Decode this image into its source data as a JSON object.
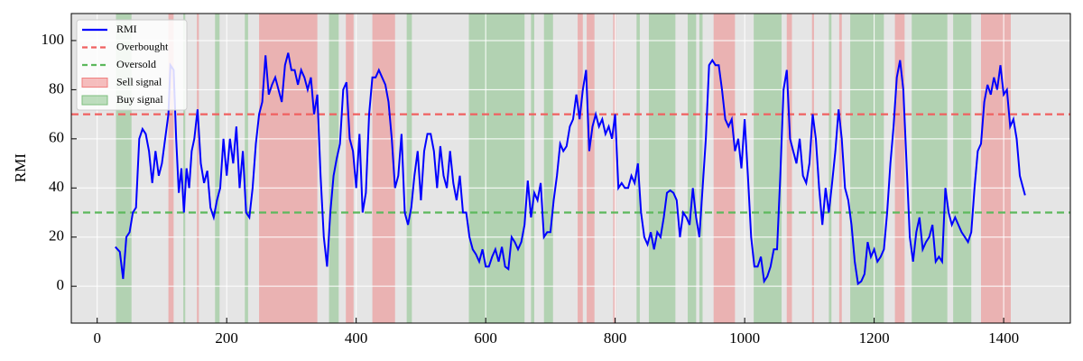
{
  "chart_data": {
    "type": "line",
    "y_label": "RMI",
    "xlim": [
      -40,
      1503
    ],
    "ylim": [
      -15,
      111
    ],
    "xticks": [
      0,
      200,
      400,
      600,
      800,
      1000,
      1200,
      1400
    ],
    "yticks": [
      0,
      20,
      40,
      60,
      80,
      100
    ],
    "grid": true,
    "legend": "upper left",
    "series": [
      {
        "name": "RMI",
        "color": "#0000ff",
        "x": [
          28,
          35,
          40,
          45,
          50,
          55,
          60,
          65,
          70,
          75,
          80,
          85,
          90,
          95,
          100,
          105,
          110,
          113,
          118,
          122,
          126,
          130,
          134,
          138,
          142,
          146,
          150,
          155,
          160,
          165,
          170,
          175,
          180,
          185,
          190,
          195,
          200,
          205,
          210,
          215,
          220,
          225,
          230,
          235,
          240,
          245,
          250,
          255,
          260,
          265,
          270,
          275,
          280,
          285,
          290,
          295,
          300,
          305,
          310,
          315,
          320,
          325,
          330,
          335,
          340,
          345,
          350,
          355,
          360,
          365,
          370,
          375,
          380,
          385,
          390,
          395,
          400,
          405,
          410,
          415,
          420,
          425,
          430,
          435,
          440,
          445,
          450,
          455,
          460,
          465,
          470,
          475,
          480,
          485,
          490,
          495,
          500,
          505,
          510,
          515,
          520,
          525,
          530,
          535,
          540,
          545,
          550,
          555,
          560,
          565,
          570,
          575,
          580,
          585,
          590,
          595,
          600,
          605,
          610,
          615,
          620,
          625,
          630,
          635,
          640,
          645,
          650,
          655,
          660,
          665,
          670,
          675,
          680,
          685,
          690,
          695,
          700,
          705,
          710,
          715,
          720,
          725,
          730,
          735,
          740,
          745,
          750,
          755,
          760,
          765,
          770,
          775,
          780,
          785,
          790,
          795,
          800,
          805,
          810,
          815,
          820,
          825,
          830,
          835,
          840,
          845,
          850,
          855,
          860,
          865,
          870,
          875,
          880,
          885,
          890,
          895,
          900,
          905,
          910,
          915,
          920,
          925,
          930,
          935,
          940,
          945,
          950,
          955,
          960,
          965,
          970,
          975,
          980,
          985,
          990,
          995,
          1000,
          1005,
          1010,
          1015,
          1020,
          1025,
          1030,
          1035,
          1040,
          1045,
          1050,
          1055,
          1060,
          1065,
          1070,
          1075,
          1080,
          1085,
          1090,
          1095,
          1100,
          1105,
          1110,
          1115,
          1120,
          1125,
          1130,
          1135,
          1140,
          1145,
          1150,
          1155,
          1160,
          1165,
          1170,
          1175,
          1180,
          1185,
          1190,
          1195,
          1200,
          1205,
          1210,
          1215,
          1220,
          1225,
          1230,
          1235,
          1240,
          1245,
          1250,
          1255,
          1260,
          1265,
          1270,
          1275,
          1280,
          1285,
          1290,
          1295,
          1300,
          1305,
          1310,
          1315,
          1320,
          1325,
          1330,
          1335,
          1340,
          1345,
          1350,
          1355,
          1360,
          1365,
          1370,
          1375,
          1380,
          1385,
          1390,
          1395,
          1400,
          1405,
          1410,
          1415,
          1420,
          1425,
          1430,
          1433
        ],
        "values": [
          16,
          14,
          3,
          20,
          22,
          30,
          32,
          60,
          64,
          62,
          55,
          42,
          55,
          45,
          50,
          60,
          70,
          90,
          88,
          60,
          38,
          48,
          30,
          48,
          40,
          55,
          60,
          72,
          50,
          42,
          47,
          32,
          28,
          35,
          40,
          60,
          45,
          60,
          50,
          65,
          40,
          55,
          30,
          28,
          40,
          58,
          70,
          75,
          94,
          78,
          82,
          85,
          80,
          75,
          90,
          95,
          88,
          88,
          82,
          88,
          85,
          80,
          85,
          70,
          78,
          45,
          20,
          8,
          30,
          45,
          52,
          58,
          80,
          83,
          60,
          55,
          40,
          62,
          30,
          38,
          70,
          85,
          85,
          88,
          85,
          82,
          75,
          60,
          40,
          45,
          62,
          30,
          25,
          32,
          45,
          55,
          35,
          55,
          62,
          62,
          55,
          40,
          57,
          45,
          40,
          55,
          42,
          35,
          45,
          30,
          30,
          20,
          15,
          13,
          10,
          15,
          8,
          8,
          12,
          15,
          10,
          16,
          8,
          7,
          20,
          18,
          15,
          18,
          25,
          43,
          28,
          38,
          35,
          42,
          20,
          22,
          22,
          35,
          45,
          58,
          55,
          57,
          65,
          68,
          78,
          68,
          80,
          88,
          55,
          65,
          70,
          65,
          68,
          62,
          65,
          60,
          70,
          40,
          42,
          40,
          40,
          45,
          42,
          50,
          30,
          20,
          17,
          22,
          15,
          22,
          20,
          28,
          38,
          39,
          38,
          35,
          20,
          30,
          28,
          25,
          40,
          28,
          20,
          40,
          60,
          90,
          92,
          90,
          90,
          80,
          68,
          65,
          68,
          55,
          60,
          48,
          68,
          45,
          20,
          8,
          8,
          12,
          2,
          4,
          8,
          15,
          15,
          45,
          80,
          88,
          60,
          55,
          50,
          60,
          45,
          42,
          50,
          70,
          60,
          40,
          25,
          40,
          30,
          42,
          55,
          72,
          60,
          40,
          35,
          25,
          10,
          1,
          2,
          5,
          18,
          12,
          15,
          10,
          12,
          15,
          30,
          50,
          65,
          85,
          92,
          80,
          50,
          20,
          10,
          22,
          28,
          15,
          18,
          20,
          25,
          10,
          12,
          10,
          40,
          30,
          25,
          28,
          25,
          22,
          20,
          18,
          22,
          40,
          55,
          58,
          75,
          82,
          78,
          85,
          80,
          90,
          78,
          80,
          65,
          68,
          60,
          45,
          40,
          37
        ]
      }
    ],
    "overbought": {
      "name": "Overbought",
      "value": 70,
      "color": "#f06060"
    },
    "oversold": {
      "name": "Oversold",
      "value": 30,
      "color": "#5cb85c"
    },
    "sell_signals": {
      "name": "Sell signal",
      "color": "#f08080",
      "ranges": [
        [
          110,
          118
        ],
        [
          154,
          157
        ],
        [
          250,
          340
        ],
        [
          384,
          396
        ],
        [
          425,
          460
        ],
        [
          742,
          750
        ],
        [
          756,
          768
        ],
        [
          797,
          801
        ],
        [
          952,
          985
        ],
        [
          1065,
          1073
        ],
        [
          1104,
          1107
        ],
        [
          1146,
          1150
        ],
        [
          1232,
          1247
        ],
        [
          1365,
          1411
        ]
      ]
    },
    "buy_signals": {
      "name": "Buy signal",
      "color": "#7fbf7f",
      "ranges": [
        [
          29,
          53
        ],
        [
          133,
          136
        ],
        [
          182,
          189
        ],
        [
          228,
          233
        ],
        [
          358,
          373
        ],
        [
          478,
          486
        ],
        [
          574,
          660
        ],
        [
          670,
          675
        ],
        [
          690,
          704
        ],
        [
          833,
          838
        ],
        [
          852,
          893
        ],
        [
          912,
          925
        ],
        [
          930,
          935
        ],
        [
          1014,
          1057
        ],
        [
          1130,
          1134
        ],
        [
          1163,
          1215
        ],
        [
          1258,
          1313
        ],
        [
          1322,
          1350
        ]
      ]
    }
  }
}
